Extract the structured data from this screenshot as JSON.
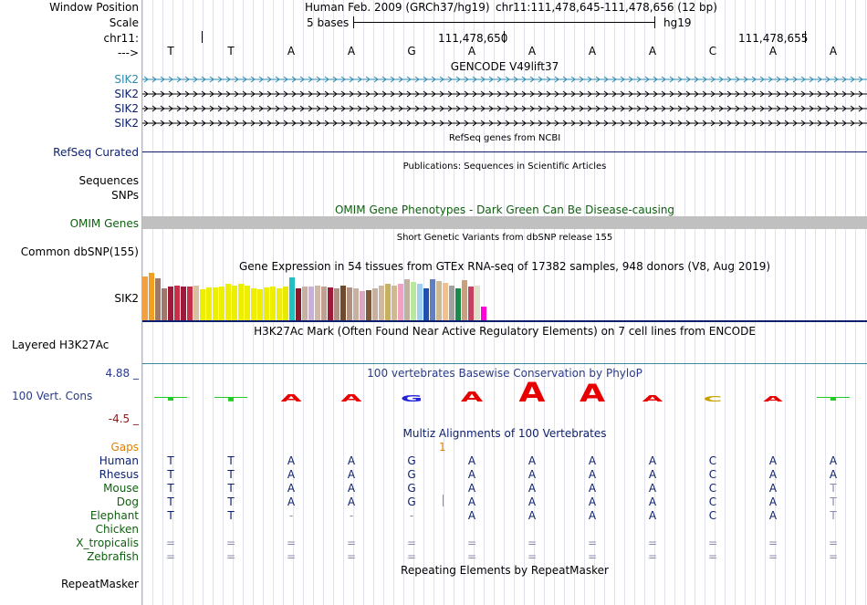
{
  "header": {
    "window_position_label": "Window Position",
    "scale_label": "Scale",
    "chrom_label": "chr11:",
    "arrow_label": "--->",
    "assembly": "Human Feb. 2009 (GRCh37/hg19)",
    "position": "chr11:111,478,645-111,478,656 (12 bp)",
    "scale_text": "5 bases",
    "db": "hg19",
    "coord1": "111,478,650",
    "coord2": "111,478,655"
  },
  "bases": [
    "T",
    "T",
    "A",
    "A",
    "G",
    "A",
    "A",
    "A",
    "A",
    "C",
    "A",
    "A"
  ],
  "tracks": {
    "gencode_title": "GENCODE V49lift37",
    "gencode_rows": [
      "SIK2",
      "SIK2",
      "SIK2",
      "SIK2"
    ],
    "refseq_label": "RefSeq Curated",
    "refseq_title": "RefSeq genes from NCBI",
    "pubs_title": "Publications: Sequences in Scientific Articles",
    "sequences_label": "Sequences",
    "snps_label": "SNPs",
    "omim_title": "OMIM Gene Phenotypes - Dark Green Can Be Disease-causing",
    "omim_label": "OMIM Genes",
    "dbsnp_title": "Short Genetic Variants from dbSNP release 155",
    "dbsnp_label": "Common dbSNP(155)",
    "gtex_title": "Gene Expression in 54 tissues from GTEx RNA-seq of 17382 samples, 948 donors (V8, Aug 2019)",
    "gtex_label": "SIK2",
    "h3k27_title": "H3K27Ac Mark (Often Found Near Active Regulatory Elements) on 7 cell lines from ENCODE",
    "h3k27_label": "Layered H3K27Ac",
    "cons_title": "100 vertebrates Basewise Conservation by PhyloP",
    "cons_label": "100 Vert. Cons",
    "cons_max": "4.88 _",
    "cons_min": "-4.5 _",
    "multiz_title": "Multiz Alignments of 100 Vertebrates",
    "gaps_label": "Gaps",
    "gap_count": "1",
    "repeat_title": "Repeating Elements by RepeatMasker",
    "repeat_label": "RepeatMasker"
  },
  "gtex_values": [
    0.92,
    1.0,
    0.88,
    0.68,
    0.71,
    0.74,
    0.71,
    0.71,
    0.73,
    0.66,
    0.7,
    0.7,
    0.72,
    0.77,
    0.74,
    0.76,
    0.74,
    0.68,
    0.66,
    0.7,
    0.72,
    0.68,
    0.71,
    0.9,
    0.68,
    0.72,
    0.72,
    0.74,
    0.72,
    0.7,
    0.68,
    0.74,
    0.7,
    0.68,
    0.62,
    0.64,
    0.68,
    0.74,
    0.77,
    0.74,
    0.76,
    0.86,
    0.8,
    0.76,
    0.68,
    0.86,
    0.82,
    0.78,
    0.74,
    0.68,
    0.84,
    0.72,
    0.74,
    0.28
  ],
  "gtex_colors": [
    "#f5a040",
    "#f0a020",
    "#a0786a",
    "#a0786a",
    "#9e1a3a",
    "#c8304a",
    "#9e1a3a",
    "#c8304a",
    "#d8c0a0",
    "#eeee00",
    "#eeee00",
    "#eeee00",
    "#eeee00",
    "#eeee00",
    "#eeee00",
    "#eeee00",
    "#eeee00",
    "#eeee00",
    "#eeee00",
    "#eeee00",
    "#eeee00",
    "#ecec10",
    "#e8e800",
    "#20c0c0",
    "#8a1a2a",
    "#c8b0a0",
    "#c8b0d8",
    "#d0b8a8",
    "#c0a090",
    "#9e1a3a",
    "#b09080",
    "#704a2a",
    "#b09080",
    "#c8b0a0",
    "#d8a8c0",
    "#7a5a3a",
    "#c8b0a0",
    "#d0b8a0",
    "#c8b060",
    "#d0b890",
    "#f0a0c0",
    "#c0b0a0",
    "#b8e8a0",
    "#a0d0f0",
    "#2050b0",
    "#6080c0",
    "#d0b890",
    "#f0c090",
    "#a0a0a0",
    "#1a8a4a",
    "#c8a080",
    "#c84060",
    "#e0e0c8",
    "#ff00dd"
  ],
  "conservation": [
    {
      "score": 0.1,
      "color": "#22cc22"
    },
    {
      "score": 0.12,
      "color": "#22cc22"
    },
    {
      "score": -0.4,
      "color": "#e80000"
    },
    {
      "score": -0.4,
      "color": "#e80000"
    },
    {
      "score": -0.35,
      "color": "#2222d8"
    },
    {
      "score": -0.55,
      "color": "#e80000"
    },
    {
      "score": -1.1,
      "color": "#e80000"
    },
    {
      "score": -1.0,
      "color": "#e80000"
    },
    {
      "score": -0.35,
      "color": "#e80000"
    },
    {
      "score": -0.25,
      "color": "#c8a000"
    },
    {
      "score": -0.2,
      "color": "#e80000"
    },
    {
      "score": 0.08,
      "color": "#22cc22"
    }
  ],
  "alignment": [
    {
      "species": "Human",
      "color": "#0b1f6e",
      "bases": [
        "T",
        "T",
        "A",
        "A",
        "G",
        "A",
        "A",
        "A",
        "A",
        "C",
        "A",
        "A"
      ]
    },
    {
      "species": "Rhesus",
      "color": "#0b1f6e",
      "bases": [
        "T",
        "T",
        "A",
        "A",
        "G",
        "A",
        "A",
        "A",
        "A",
        "C",
        "A",
        "A"
      ]
    },
    {
      "species": "Mouse",
      "color": "#0f5f0f",
      "bases": [
        "T",
        "T",
        "A",
        "A",
        "G",
        "A",
        "A",
        "A",
        "A",
        "C",
        "A",
        "T"
      ]
    },
    {
      "species": "Dog",
      "color": "#0f5f0f",
      "bases": [
        "T",
        "T",
        "A",
        "A",
        "G",
        "A",
        "A",
        "A",
        "A",
        "C",
        "A",
        "T"
      ]
    },
    {
      "species": "Elephant",
      "color": "#0f5f0f",
      "bases": [
        "T",
        "T",
        "-",
        "-",
        "-",
        "A",
        "A",
        "A",
        "A",
        "C",
        "A",
        "T"
      ]
    },
    {
      "species": "Chicken",
      "color": "#0f5f0f",
      "bases": [
        "",
        "",
        "",
        "",
        "",
        "",
        "",
        "",
        "",
        "",
        "",
        ""
      ]
    },
    {
      "species": "X_tropicalis",
      "color": "#0f5f0f",
      "bases": [
        "=",
        "=",
        "=",
        "=",
        "=",
        "=",
        "=",
        "=",
        "=",
        "=",
        "=",
        "="
      ]
    },
    {
      "species": "Zebrafish",
      "color": "#0f5f0f",
      "bases": [
        "=",
        "=",
        "=",
        "=",
        "=",
        "=",
        "=",
        "=",
        "=",
        "=",
        "=",
        "="
      ]
    }
  ]
}
